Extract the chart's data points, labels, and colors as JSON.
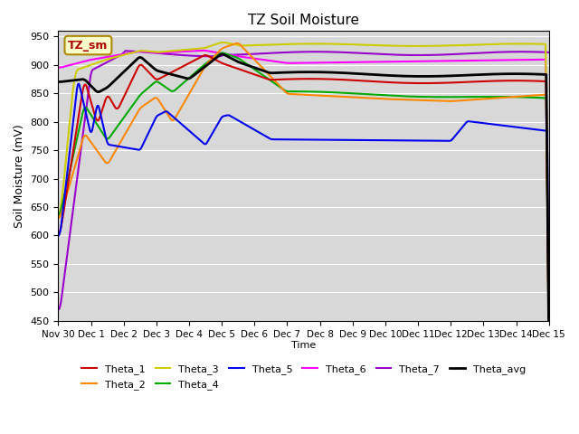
{
  "title": "TZ Soil Moisture",
  "ylabel": "Soil Moisture (mV)",
  "xlabel": "Time",
  "ylim": [
    450,
    960
  ],
  "bg_color": "#d8d8d8",
  "fig_color": "#ffffff",
  "label_box": "TZ_sm",
  "x_tick_labels": [
    "Nov 30",
    "Dec 1",
    "Dec 2",
    "Dec 3",
    "Dec 4",
    "Dec 5",
    "Dec 6",
    "Dec 7",
    "Dec 8",
    "Dec 9",
    "Dec 10",
    "Dec 11",
    "Dec 12",
    "Dec 13",
    "Dec 14",
    "Dec 15"
  ],
  "series": {
    "Theta_1": {
      "color": "#cc0000",
      "lw": 1.5
    },
    "Theta_2": {
      "color": "#ff8800",
      "lw": 1.5
    },
    "Theta_3": {
      "color": "#cccc00",
      "lw": 1.5
    },
    "Theta_4": {
      "color": "#00aa00",
      "lw": 1.5
    },
    "Theta_5": {
      "color": "#0000ee",
      "lw": 1.5
    },
    "Theta_6": {
      "color": "#ff00ff",
      "lw": 1.5
    },
    "Theta_7": {
      "color": "#9900cc",
      "lw": 1.5
    },
    "Theta_avg": {
      "color": "#000000",
      "lw": 2.0
    }
  }
}
